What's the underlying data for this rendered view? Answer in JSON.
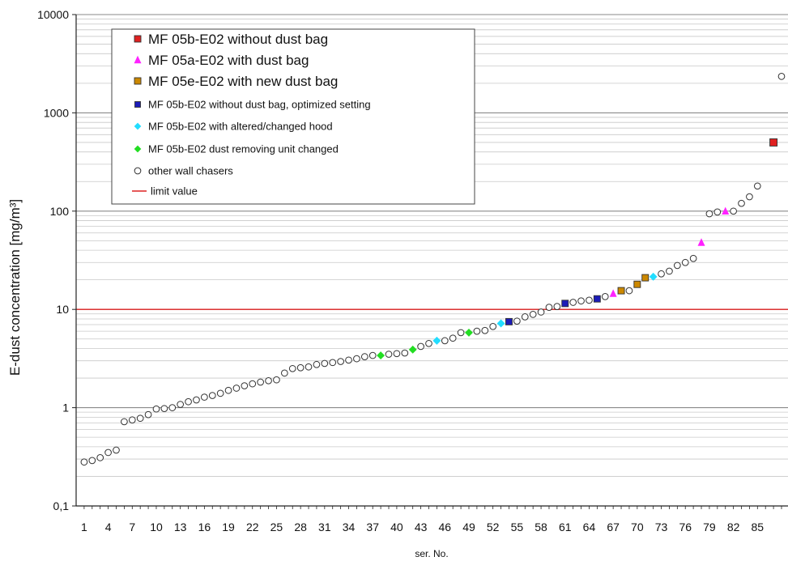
{
  "chart_data": {
    "type": "scatter",
    "ylabel": "E-dust concentration [mg/m³]",
    "xlabel": "ser. No.",
    "y_scale": "log",
    "ylim": [
      0.1,
      10000
    ],
    "xlim": [
      0,
      88
    ],
    "y_ticks": [
      {
        "v": 10000,
        "label": "10000"
      },
      {
        "v": 1000,
        "label": "1000"
      },
      {
        "v": 100,
        "label": "100"
      },
      {
        "v": 10,
        "label": "10"
      },
      {
        "v": 1,
        "label": "1"
      },
      {
        "v": 0.1,
        "label": "0,1"
      }
    ],
    "x_ticks": [
      1,
      4,
      7,
      10,
      13,
      16,
      19,
      22,
      25,
      28,
      31,
      34,
      37,
      40,
      43,
      46,
      49,
      52,
      55,
      58,
      61,
      64,
      67,
      70,
      73,
      76,
      79,
      82,
      85
    ],
    "grid": true,
    "limit_value": 10,
    "legend_position": "top-left",
    "legend": [
      {
        "label": "MF 05b-E02 without dust bag",
        "marker": "square",
        "color": "#e02020",
        "size": "large"
      },
      {
        "label": "MF 05a-E02 with dust bag",
        "marker": "triangle",
        "color": "#ff22ff",
        "size": "large"
      },
      {
        "label": "MF 05e-E02 with new dust bag",
        "marker": "square",
        "color": "#cc8800",
        "size": "large"
      },
      {
        "label": "MF 05b-E02 without dust bag, optimized setting",
        "marker": "square",
        "color": "#1c1cb8",
        "size": "small"
      },
      {
        "label": "MF 05b-E02 with altered/changed hood",
        "marker": "diamond",
        "color": "#22ddff",
        "size": "small"
      },
      {
        "label": "MF 05b-E02 dust removing unit changed",
        "marker": "diamond",
        "color": "#22dd22",
        "size": "small"
      },
      {
        "label": "other  wall chasers",
        "marker": "circle",
        "color": "#333333",
        "size": "small"
      },
      {
        "label": "limit value",
        "marker": "line",
        "color": "#dd2222",
        "size": "small"
      }
    ],
    "series": [
      {
        "name": "MF 05b-E02 without dust bag",
        "marker": "square",
        "color": "#e02020",
        "points": [
          [
            87,
            500
          ]
        ]
      },
      {
        "name": "MF 05a-E02 with dust bag",
        "marker": "triangle",
        "color": "#ff22ff",
        "points": [
          [
            67,
            14.5
          ],
          [
            78,
            48
          ],
          [
            81,
            100
          ]
        ]
      },
      {
        "name": "MF 05e-E02 with new dust bag",
        "marker": "square",
        "color": "#cc8800",
        "points": [
          [
            68,
            15.5
          ],
          [
            70,
            18
          ],
          [
            71,
            21
          ]
        ]
      },
      {
        "name": "MF 05b-E02 without dust bag, optimized setting",
        "marker": "square",
        "color": "#1c1cb8",
        "points": [
          [
            54,
            7.5
          ],
          [
            61,
            11.5
          ],
          [
            65,
            12.8
          ]
        ]
      },
      {
        "name": "MF 05b-E02 with altered/changed hood",
        "marker": "diamond",
        "color": "#22ddff",
        "points": [
          [
            45,
            4.8
          ],
          [
            53,
            7.2
          ],
          [
            72,
            21.5
          ]
        ]
      },
      {
        "name": "MF 05b-E02 dust removing unit changed",
        "marker": "diamond",
        "color": "#22dd22",
        "points": [
          [
            38,
            3.4
          ],
          [
            42,
            3.9
          ],
          [
            49,
            5.8
          ]
        ]
      },
      {
        "name": "other  wall chasers",
        "marker": "circle",
        "color": "#333333",
        "points": [
          [
            1,
            0.28
          ],
          [
            2,
            0.29
          ],
          [
            3,
            0.31
          ],
          [
            4,
            0.35
          ],
          [
            5,
            0.37
          ],
          [
            6,
            0.72
          ],
          [
            7,
            0.75
          ],
          [
            8,
            0.78
          ],
          [
            9,
            0.85
          ],
          [
            10,
            0.97
          ],
          [
            11,
            0.98
          ],
          [
            12,
            1.0
          ],
          [
            13,
            1.08
          ],
          [
            14,
            1.15
          ],
          [
            15,
            1.2
          ],
          [
            16,
            1.28
          ],
          [
            17,
            1.33
          ],
          [
            18,
            1.4
          ],
          [
            19,
            1.5
          ],
          [
            20,
            1.58
          ],
          [
            21,
            1.67
          ],
          [
            22,
            1.75
          ],
          [
            23,
            1.82
          ],
          [
            24,
            1.88
          ],
          [
            25,
            1.92
          ],
          [
            26,
            2.25
          ],
          [
            27,
            2.5
          ],
          [
            28,
            2.55
          ],
          [
            29,
            2.6
          ],
          [
            30,
            2.75
          ],
          [
            31,
            2.82
          ],
          [
            32,
            2.88
          ],
          [
            33,
            2.95
          ],
          [
            34,
            3.05
          ],
          [
            35,
            3.15
          ],
          [
            36,
            3.3
          ],
          [
            37,
            3.4
          ],
          [
            39,
            3.5
          ],
          [
            40,
            3.55
          ],
          [
            41,
            3.6
          ],
          [
            43,
            4.2
          ],
          [
            44,
            4.5
          ],
          [
            46,
            4.8
          ],
          [
            47,
            5.1
          ],
          [
            48,
            5.8
          ],
          [
            50,
            6.0
          ],
          [
            51,
            6.1
          ],
          [
            52,
            6.7
          ],
          [
            55,
            7.6
          ],
          [
            56,
            8.4
          ],
          [
            57,
            8.9
          ],
          [
            58,
            9.4
          ],
          [
            59,
            10.5
          ],
          [
            60,
            10.7
          ],
          [
            62,
            11.8
          ],
          [
            63,
            12.2
          ],
          [
            64,
            12.4
          ],
          [
            66,
            13.5
          ],
          [
            69,
            15.5
          ],
          [
            73,
            23
          ],
          [
            74,
            24.5
          ],
          [
            75,
            28
          ],
          [
            76,
            30
          ],
          [
            77,
            33
          ],
          [
            79,
            94
          ],
          [
            80,
            98
          ],
          [
            82,
            100
          ],
          [
            83,
            120
          ],
          [
            84,
            140
          ],
          [
            85,
            180
          ],
          [
            88,
            2350
          ]
        ]
      }
    ]
  }
}
